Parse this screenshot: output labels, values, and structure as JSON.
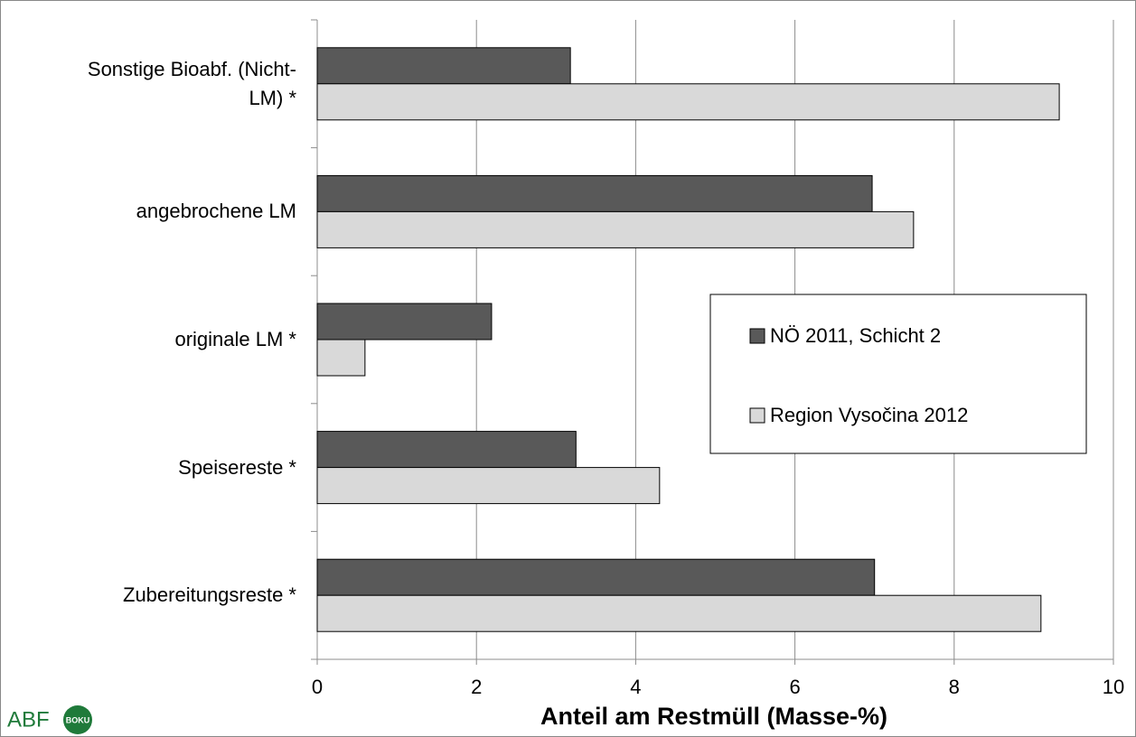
{
  "chart_data": {
    "type": "bar",
    "orientation": "horizontal",
    "categories": [
      "Sonstige Bioabf. (Nicht-LM) *",
      "angebrochene LM",
      "originale LM *",
      "Speisereste *",
      "Zubereitungsreste *"
    ],
    "series": [
      {
        "name": "NÖ 2011, Schicht 2",
        "color": "#595959",
        "values": [
          3.18,
          6.97,
          2.19,
          3.25,
          7.0
        ]
      },
      {
        "name": "Region Vysočina 2012",
        "color": "#d9d9d9",
        "values": [
          9.32,
          7.49,
          0.6,
          4.3,
          9.09
        ]
      }
    ],
    "x_label": "Anteil am Restmüll (Masse-%)",
    "xlim": [
      0,
      10
    ],
    "xticks": [
      0,
      2,
      4,
      6,
      8,
      10
    ],
    "grid": true,
    "legend": "right"
  },
  "logo": {
    "text": "ABF",
    "badge": "BOKU"
  }
}
